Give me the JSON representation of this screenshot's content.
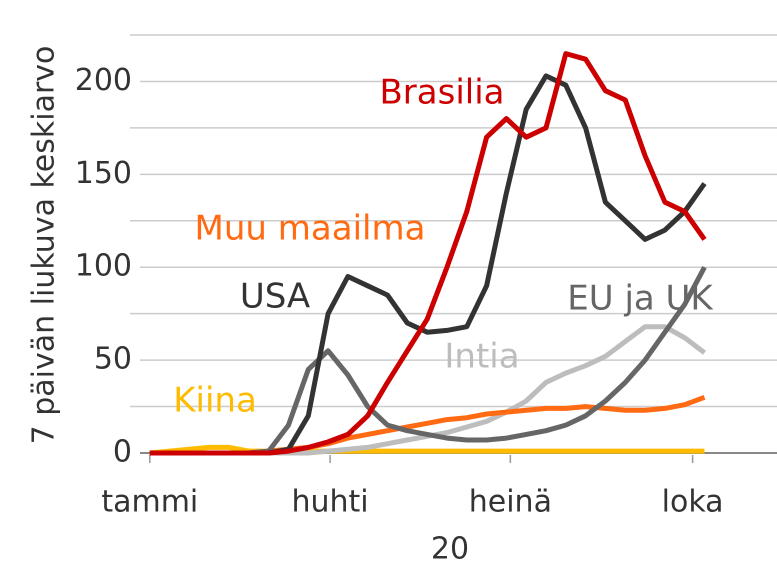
{
  "chart_data": {
    "type": "line",
    "y_axis_label": "7 päivän liukuva keskiarvo",
    "x_axis_label": "20",
    "x": [
      0,
      10,
      20,
      30,
      40,
      50,
      60,
      70,
      80,
      90,
      100,
      110,
      120,
      130,
      140,
      150,
      160,
      170,
      180,
      190,
      200,
      210,
      220,
      230,
      240,
      250,
      260,
      270,
      280
    ],
    "xlim": [
      -10,
      306
    ],
    "xticks": [
      {
        "value": 0,
        "label": "tammi"
      },
      {
        "value": 91,
        "label": "huhti"
      },
      {
        "value": 182,
        "label": "heinä"
      },
      {
        "value": 274,
        "label": "loka"
      }
    ],
    "ylim": [
      0,
      225
    ],
    "yticks": [
      0,
      50,
      100,
      150,
      200
    ],
    "minor_yticks": [
      25,
      75,
      125,
      175,
      225
    ],
    "grid": true,
    "series": [
      {
        "name": "Kiina",
        "color": "#ffbb00",
        "values": [
          0,
          1,
          2,
          3,
          3,
          1,
          1,
          1,
          1,
          1,
          1,
          1,
          1,
          1,
          1,
          1,
          1,
          1,
          1,
          1,
          1,
          1,
          1,
          1,
          1,
          1,
          1,
          1,
          1
        ]
      },
      {
        "name": "Intia",
        "color": "#bdbdbd",
        "values": [
          0,
          0,
          0,
          0,
          0,
          0,
          0,
          0,
          0,
          1,
          2,
          3,
          5,
          7,
          9,
          11,
          14,
          17,
          22,
          28,
          38,
          43,
          47,
          52,
          60,
          68,
          68,
          62,
          54
        ]
      },
      {
        "name": "Muu maailma",
        "color": "#ff6a13",
        "values": [
          0,
          0,
          0,
          0,
          0,
          0,
          1,
          2,
          3,
          5,
          8,
          10,
          12,
          14,
          16,
          18,
          19,
          21,
          22,
          23,
          24,
          24,
          25,
          24,
          23,
          23,
          24,
          26,
          30
        ]
      },
      {
        "name": "EU ja UK",
        "color": "#666666",
        "values": [
          0,
          0,
          0,
          0,
          0,
          0,
          1,
          15,
          45,
          55,
          42,
          25,
          15,
          12,
          10,
          8,
          7,
          7,
          8,
          10,
          12,
          15,
          20,
          28,
          38,
          50,
          65,
          80,
          100
        ]
      },
      {
        "name": "USA",
        "color": "#333333",
        "values": [
          0,
          0,
          0,
          0,
          0,
          0,
          0,
          2,
          20,
          75,
          95,
          90,
          85,
          70,
          65,
          66,
          68,
          90,
          140,
          185,
          203,
          198,
          175,
          135,
          125,
          115,
          120,
          130,
          145
        ]
      },
      {
        "name": "Brasilia",
        "color": "#cc0000",
        "values": [
          0,
          0,
          0,
          0,
          0,
          0,
          0,
          1,
          3,
          6,
          10,
          20,
          38,
          55,
          72,
          100,
          130,
          170,
          180,
          170,
          175,
          215,
          212,
          195,
          190,
          160,
          135,
          130,
          115
        ]
      }
    ]
  }
}
